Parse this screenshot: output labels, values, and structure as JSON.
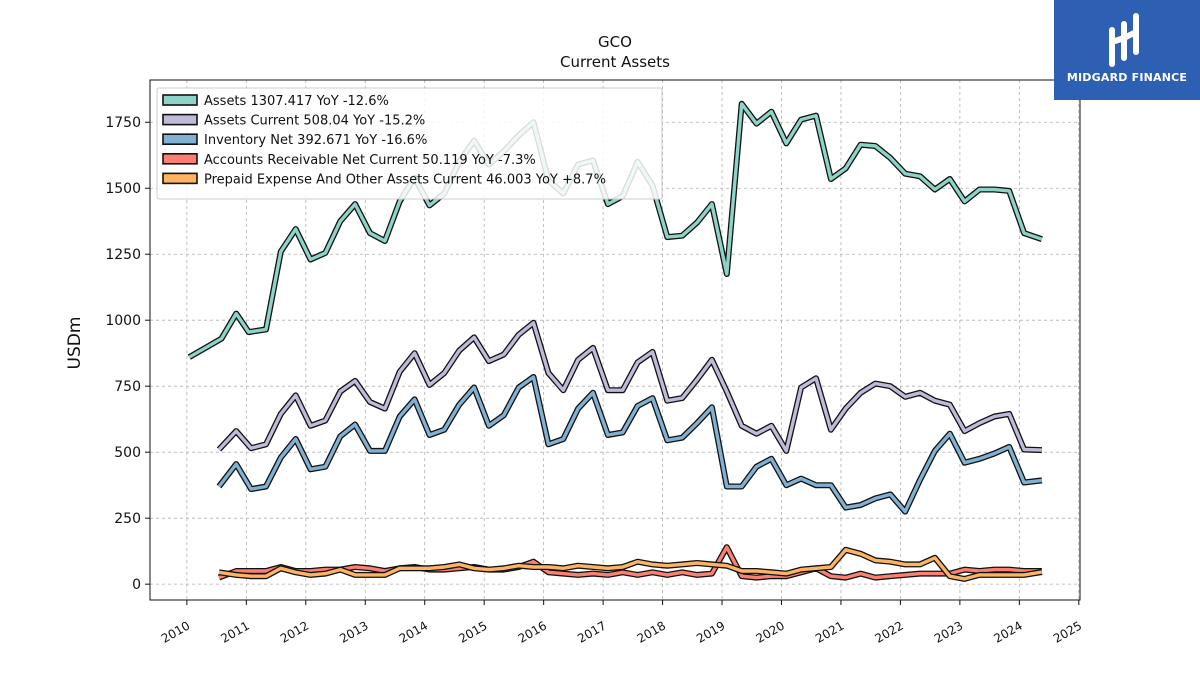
{
  "brand": {
    "name": "MIDGARD FINANCE"
  },
  "colors": {
    "Assets": "#8dd3c7",
    "Assets Current": "#bebada",
    "Inventory Net": "#80b1d3",
    "Accounts Receivable Net Current": "#fb8072",
    "Prepaid Expense And Other Assets Current": "#fdb462",
    "outline": "#111111",
    "grid": "#b0b0b0",
    "brand": "#2d5fb3"
  },
  "chart_data": {
    "type": "line",
    "title": "GCO",
    "subtitle": "Current  Assets",
    "xlabel": "",
    "ylabel": "USDm",
    "xlim": [
      2009.38,
      2025.02
    ],
    "ylim": [
      -60,
      1910
    ],
    "x_ticks": [
      "2010",
      "2011",
      "2012",
      "2013",
      "2014",
      "2015",
      "2016",
      "2017",
      "2018",
      "2019",
      "2020",
      "2021",
      "2022",
      "2023",
      "2024",
      "2025"
    ],
    "y_ticks": [
      "0",
      "250",
      "500",
      "750",
      "1000",
      "1250",
      "1500",
      "1750"
    ],
    "grid": true,
    "legend_position": "top-left",
    "series": [
      {
        "name": "Assets",
        "legend_label": "Assets  1307.417 YoY -12.6%",
        "points": [
          [
            2010.04,
            860
          ],
          [
            2010.58,
            930
          ],
          [
            2010.83,
            1025
          ],
          [
            2011.04,
            955
          ],
          [
            2011.33,
            965
          ],
          [
            2011.58,
            1260
          ],
          [
            2011.83,
            1345
          ],
          [
            2012.08,
            1230
          ],
          [
            2012.33,
            1255
          ],
          [
            2012.58,
            1375
          ],
          [
            2012.83,
            1440
          ],
          [
            2013.08,
            1330
          ],
          [
            2013.33,
            1300
          ],
          [
            2013.58,
            1450
          ],
          [
            2013.83,
            1540
          ],
          [
            2014.08,
            1435
          ],
          [
            2014.33,
            1480
          ],
          [
            2014.58,
            1600
          ],
          [
            2014.83,
            1680
          ],
          [
            2015.08,
            1590
          ],
          [
            2015.33,
            1640
          ],
          [
            2015.58,
            1700
          ],
          [
            2015.83,
            1750
          ],
          [
            2016.08,
            1530
          ],
          [
            2016.33,
            1480
          ],
          [
            2016.58,
            1590
          ],
          [
            2016.83,
            1605
          ],
          [
            2017.08,
            1440
          ],
          [
            2017.33,
            1470
          ],
          [
            2017.58,
            1600
          ],
          [
            2017.83,
            1510
          ],
          [
            2018.08,
            1315
          ],
          [
            2018.33,
            1320
          ],
          [
            2018.58,
            1370
          ],
          [
            2018.83,
            1440
          ],
          [
            2019.08,
            1175
          ],
          [
            2019.33,
            1820
          ],
          [
            2019.58,
            1745
          ],
          [
            2019.83,
            1790
          ],
          [
            2020.08,
            1670
          ],
          [
            2020.33,
            1760
          ],
          [
            2020.58,
            1775
          ],
          [
            2020.83,
            1535
          ],
          [
            2021.08,
            1575
          ],
          [
            2021.33,
            1665
          ],
          [
            2021.58,
            1660
          ],
          [
            2021.83,
            1615
          ],
          [
            2022.08,
            1555
          ],
          [
            2022.33,
            1545
          ],
          [
            2022.58,
            1495
          ],
          [
            2022.83,
            1535
          ],
          [
            2023.08,
            1450
          ],
          [
            2023.33,
            1495
          ],
          [
            2023.58,
            1495
          ],
          [
            2023.83,
            1490
          ],
          [
            2024.08,
            1330
          ],
          [
            2024.38,
            1307
          ]
        ]
      },
      {
        "name": "Assets Current",
        "legend_label": "Assets Current  508.04 YoY -15.2%",
        "points": [
          [
            2010.54,
            510
          ],
          [
            2010.83,
            580
          ],
          [
            2011.08,
            515
          ],
          [
            2011.33,
            530
          ],
          [
            2011.58,
            645
          ],
          [
            2011.83,
            715
          ],
          [
            2012.08,
            600
          ],
          [
            2012.33,
            620
          ],
          [
            2012.58,
            730
          ],
          [
            2012.83,
            770
          ],
          [
            2013.08,
            690
          ],
          [
            2013.33,
            665
          ],
          [
            2013.58,
            805
          ],
          [
            2013.83,
            875
          ],
          [
            2014.08,
            755
          ],
          [
            2014.33,
            800
          ],
          [
            2014.58,
            885
          ],
          [
            2014.83,
            935
          ],
          [
            2015.08,
            845
          ],
          [
            2015.33,
            870
          ],
          [
            2015.58,
            945
          ],
          [
            2015.83,
            990
          ],
          [
            2016.08,
            800
          ],
          [
            2016.33,
            735
          ],
          [
            2016.58,
            850
          ],
          [
            2016.83,
            895
          ],
          [
            2017.08,
            735
          ],
          [
            2017.33,
            735
          ],
          [
            2017.58,
            840
          ],
          [
            2017.83,
            880
          ],
          [
            2018.08,
            695
          ],
          [
            2018.33,
            705
          ],
          [
            2018.58,
            775
          ],
          [
            2018.83,
            850
          ],
          [
            2019.08,
            730
          ],
          [
            2019.33,
            600
          ],
          [
            2019.58,
            570
          ],
          [
            2019.83,
            600
          ],
          [
            2020.08,
            505
          ],
          [
            2020.33,
            745
          ],
          [
            2020.58,
            780
          ],
          [
            2020.83,
            585
          ],
          [
            2021.08,
            665
          ],
          [
            2021.33,
            725
          ],
          [
            2021.58,
            760
          ],
          [
            2021.83,
            750
          ],
          [
            2022.08,
            710
          ],
          [
            2022.33,
            725
          ],
          [
            2022.58,
            695
          ],
          [
            2022.83,
            680
          ],
          [
            2023.08,
            580
          ],
          [
            2023.33,
            610
          ],
          [
            2023.58,
            635
          ],
          [
            2023.83,
            645
          ],
          [
            2024.08,
            510
          ],
          [
            2024.38,
            508
          ]
        ]
      },
      {
        "name": "Inventory Net",
        "legend_label": "Inventory Net  392.671 YoY -16.6%",
        "points": [
          [
            2010.54,
            370
          ],
          [
            2010.83,
            455
          ],
          [
            2011.08,
            360
          ],
          [
            2011.33,
            370
          ],
          [
            2011.58,
            480
          ],
          [
            2011.83,
            550
          ],
          [
            2012.08,
            435
          ],
          [
            2012.33,
            445
          ],
          [
            2012.58,
            560
          ],
          [
            2012.83,
            605
          ],
          [
            2013.08,
            505
          ],
          [
            2013.33,
            505
          ],
          [
            2013.58,
            635
          ],
          [
            2013.83,
            700
          ],
          [
            2014.08,
            565
          ],
          [
            2014.33,
            585
          ],
          [
            2014.58,
            680
          ],
          [
            2014.83,
            745
          ],
          [
            2015.08,
            600
          ],
          [
            2015.33,
            640
          ],
          [
            2015.58,
            745
          ],
          [
            2015.83,
            785
          ],
          [
            2016.08,
            530
          ],
          [
            2016.33,
            550
          ],
          [
            2016.58,
            665
          ],
          [
            2016.83,
            725
          ],
          [
            2017.08,
            565
          ],
          [
            2017.33,
            575
          ],
          [
            2017.58,
            675
          ],
          [
            2017.83,
            705
          ],
          [
            2018.08,
            545
          ],
          [
            2018.33,
            555
          ],
          [
            2018.58,
            610
          ],
          [
            2018.83,
            670
          ],
          [
            2019.08,
            370
          ],
          [
            2019.33,
            370
          ],
          [
            2019.58,
            445
          ],
          [
            2019.83,
            475
          ],
          [
            2020.08,
            375
          ],
          [
            2020.33,
            400
          ],
          [
            2020.58,
            375
          ],
          [
            2020.83,
            375
          ],
          [
            2021.08,
            290
          ],
          [
            2021.33,
            300
          ],
          [
            2021.58,
            325
          ],
          [
            2021.83,
            340
          ],
          [
            2022.08,
            275
          ],
          [
            2022.33,
            395
          ],
          [
            2022.58,
            505
          ],
          [
            2022.83,
            570
          ],
          [
            2023.08,
            460
          ],
          [
            2023.33,
            475
          ],
          [
            2023.58,
            495
          ],
          [
            2023.83,
            520
          ],
          [
            2024.08,
            385
          ],
          [
            2024.38,
            393
          ]
        ]
      },
      {
        "name": "Accounts Receivable Net Current",
        "legend_label": "Accounts Receivable Net Current  50.119 YoY -7.3%",
        "points": [
          [
            2010.54,
            25
          ],
          [
            2010.83,
            50
          ],
          [
            2011.08,
            50
          ],
          [
            2011.33,
            50
          ],
          [
            2011.58,
            65
          ],
          [
            2011.83,
            50
          ],
          [
            2012.08,
            50
          ],
          [
            2012.33,
            55
          ],
          [
            2012.58,
            55
          ],
          [
            2012.83,
            65
          ],
          [
            2013.08,
            60
          ],
          [
            2013.33,
            50
          ],
          [
            2013.58,
            60
          ],
          [
            2013.83,
            65
          ],
          [
            2014.08,
            55
          ],
          [
            2014.33,
            55
          ],
          [
            2014.58,
            60
          ],
          [
            2014.83,
            65
          ],
          [
            2015.08,
            55
          ],
          [
            2015.33,
            55
          ],
          [
            2015.58,
            65
          ],
          [
            2015.83,
            85
          ],
          [
            2016.08,
            45
          ],
          [
            2016.33,
            40
          ],
          [
            2016.58,
            35
          ],
          [
            2016.83,
            40
          ],
          [
            2017.08,
            35
          ],
          [
            2017.33,
            45
          ],
          [
            2017.58,
            35
          ],
          [
            2017.83,
            45
          ],
          [
            2018.08,
            35
          ],
          [
            2018.33,
            45
          ],
          [
            2018.58,
            35
          ],
          [
            2018.83,
            40
          ],
          [
            2019.08,
            140
          ],
          [
            2019.33,
            30
          ],
          [
            2019.58,
            25
          ],
          [
            2019.83,
            30
          ],
          [
            2020.08,
            30
          ],
          [
            2020.33,
            45
          ],
          [
            2020.58,
            60
          ],
          [
            2020.83,
            30
          ],
          [
            2021.08,
            25
          ],
          [
            2021.33,
            40
          ],
          [
            2021.58,
            25
          ],
          [
            2021.83,
            30
          ],
          [
            2022.08,
            35
          ],
          [
            2022.33,
            40
          ],
          [
            2022.58,
            40
          ],
          [
            2022.83,
            40
          ],
          [
            2023.08,
            55
          ],
          [
            2023.33,
            50
          ],
          [
            2023.58,
            55
          ],
          [
            2023.83,
            55
          ],
          [
            2024.08,
            50
          ],
          [
            2024.38,
            50
          ]
        ]
      },
      {
        "name": "Prepaid Expense And Other Assets Current",
        "legend_label": "Prepaid Expense And Other Assets Current  46.003 YoY +8.7%",
        "points": [
          [
            2010.54,
            45
          ],
          [
            2010.83,
            35
          ],
          [
            2011.08,
            30
          ],
          [
            2011.33,
            30
          ],
          [
            2011.58,
            60
          ],
          [
            2011.83,
            45
          ],
          [
            2012.08,
            35
          ],
          [
            2012.33,
            40
          ],
          [
            2012.58,
            55
          ],
          [
            2012.83,
            35
          ],
          [
            2013.08,
            35
          ],
          [
            2013.33,
            35
          ],
          [
            2013.58,
            60
          ],
          [
            2013.83,
            60
          ],
          [
            2014.08,
            60
          ],
          [
            2014.33,
            65
          ],
          [
            2014.58,
            75
          ],
          [
            2014.83,
            60
          ],
          [
            2015.08,
            55
          ],
          [
            2015.33,
            60
          ],
          [
            2015.58,
            70
          ],
          [
            2015.83,
            65
          ],
          [
            2016.08,
            65
          ],
          [
            2016.33,
            60
          ],
          [
            2016.58,
            70
          ],
          [
            2016.83,
            65
          ],
          [
            2017.08,
            60
          ],
          [
            2017.33,
            65
          ],
          [
            2017.58,
            85
          ],
          [
            2017.83,
            75
          ],
          [
            2018.08,
            70
          ],
          [
            2018.33,
            75
          ],
          [
            2018.58,
            80
          ],
          [
            2018.83,
            75
          ],
          [
            2019.08,
            70
          ],
          [
            2019.33,
            50
          ],
          [
            2019.58,
            50
          ],
          [
            2019.83,
            45
          ],
          [
            2020.08,
            40
          ],
          [
            2020.33,
            55
          ],
          [
            2020.58,
            60
          ],
          [
            2020.83,
            65
          ],
          [
            2021.08,
            130
          ],
          [
            2021.33,
            115
          ],
          [
            2021.58,
            90
          ],
          [
            2021.83,
            85
          ],
          [
            2022.08,
            75
          ],
          [
            2022.33,
            75
          ],
          [
            2022.58,
            100
          ],
          [
            2022.83,
            30
          ],
          [
            2023.08,
            20
          ],
          [
            2023.33,
            35
          ],
          [
            2023.58,
            35
          ],
          [
            2023.83,
            35
          ],
          [
            2024.08,
            35
          ],
          [
            2024.38,
            46
          ]
        ]
      }
    ]
  }
}
